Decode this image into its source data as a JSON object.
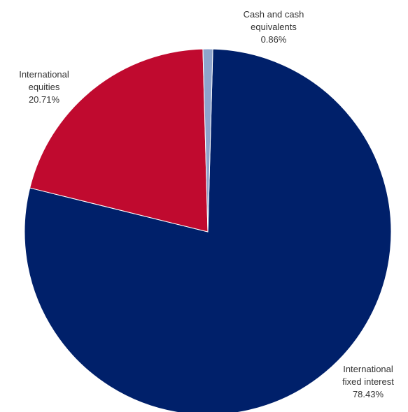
{
  "chart_data": {
    "type": "pie",
    "title": "",
    "legend": "none",
    "start_angle_deg": 1.55,
    "direction": "clockwise",
    "slices": [
      {
        "key": "fixed",
        "label_lines": [
          "International",
          "fixed interest"
        ],
        "value": 78.43,
        "value_label": "78.43%",
        "color": "#00206A"
      },
      {
        "key": "equities",
        "label_lines": [
          "International",
          "equities"
        ],
        "value": 20.71,
        "value_label": "20.71%",
        "color": "#C00A2F"
      },
      {
        "key": "cash",
        "label_lines": [
          "Cash and cash",
          "equivalents"
        ],
        "value": 0.86,
        "value_label": "0.86%",
        "color": "#8EA4CC"
      }
    ]
  }
}
